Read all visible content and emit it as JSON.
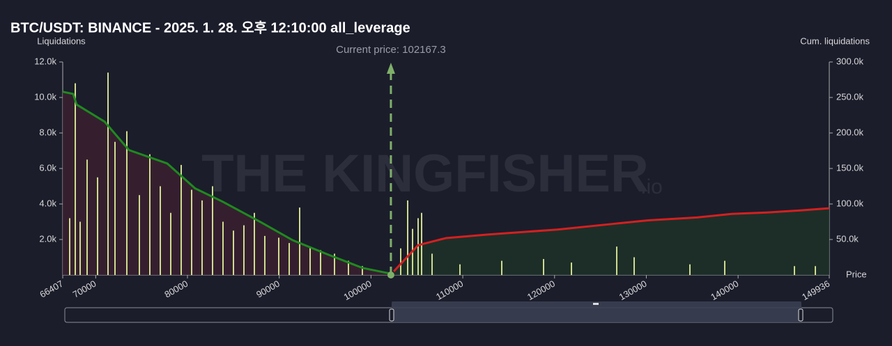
{
  "chart_data": {
    "type": "liquidation-map",
    "title": "BTC/USDT: BINANCE - 2025. 1. 28. 오후 12:10:00 all_leverage",
    "y_label": "Liquidations",
    "y2_label": "Cum. liquidations",
    "x_label": "Price",
    "annotation": "Current price: 102167.3",
    "current_price": 102167.3,
    "current_price_color": "#7fb069",
    "watermark": "THE KINGFISHER",
    "watermark_suffix": ".io",
    "xlim": [
      66407,
      149936
    ],
    "xticks": [
      66407,
      70000,
      80000,
      90000,
      100000,
      110000,
      120000,
      130000,
      140000,
      149936
    ],
    "ylim": [
      0,
      12000
    ],
    "yticks": [
      {
        "value": 2000,
        "label": "2.0k"
      },
      {
        "value": 4000,
        "label": "4.0k"
      },
      {
        "value": 6000,
        "label": "6.0k"
      },
      {
        "value": 8000,
        "label": "8.0k"
      },
      {
        "value": 10000,
        "label": "10.0k"
      },
      {
        "value": 12000,
        "label": "12.0k"
      }
    ],
    "y2lim": [
      0,
      300000
    ],
    "y2ticks": [
      {
        "value": 50000,
        "label": "50.0k"
      },
      {
        "value": 100000,
        "label": "100.0k"
      },
      {
        "value": 150000,
        "label": "150.0k"
      },
      {
        "value": 200000,
        "label": "200.0k"
      },
      {
        "value": 250000,
        "label": "250.0k"
      },
      {
        "value": 300000,
        "label": "300.0k"
      }
    ],
    "bars": {
      "color": "#cfdc8e",
      "x": [
        67166,
        67774,
        68305,
        69064,
        70204,
        71343,
        72102,
        73393,
        74760,
        75899,
        77038,
        78177,
        79316,
        80455,
        81594,
        82733,
        83872,
        85011,
        86150,
        87289,
        88428,
        89947,
        91086,
        92225,
        93364,
        94503,
        96022,
        97541,
        99059,
        103236,
        103995,
        104527,
        105135,
        105514,
        106653,
        109691,
        114247,
        118803,
        121840,
        126777,
        128674,
        134749,
        138546,
        146140,
        148418
      ],
      "values": [
        3200,
        10800,
        3000,
        6500,
        5500,
        11400,
        7500,
        8100,
        4500,
        6800,
        5000,
        3500,
        6200,
        4800,
        4200,
        5000,
        3000,
        2500,
        2800,
        3500,
        2200,
        2100,
        1800,
        3800,
        1600,
        1400,
        1200,
        800,
        500,
        1500,
        4200,
        2600,
        3200,
        3500,
        1200,
        600,
        800,
        900,
        700,
        1600,
        1000,
        600,
        800,
        500,
        500
      ]
    },
    "lines": [
      {
        "axis": "y2",
        "color": "#1f8a1f",
        "fill": "#3a2030",
        "x": [
          66407,
          67546,
          67926,
          70963,
          73621,
          77797,
          80835,
          83872,
          88049,
          91466,
          95262,
          99059,
          102097
        ],
        "values": [
          258000,
          255000,
          240000,
          216000,
          176000,
          157000,
          122000,
          103000,
          74000,
          49000,
          29000,
          10000,
          2000
        ]
      },
      {
        "axis": "y2",
        "color": "#d42020",
        "fill": "#1d3128",
        "x": [
          102477,
          105135,
          108172,
          112728,
          120322,
          126396,
          130193,
          135508,
          139305,
          143102,
          146899,
          149936
        ],
        "values": [
          5000,
          42000,
          52000,
          57000,
          64000,
          72000,
          77000,
          81000,
          86000,
          88000,
          91000,
          94000
        ]
      }
    ]
  }
}
